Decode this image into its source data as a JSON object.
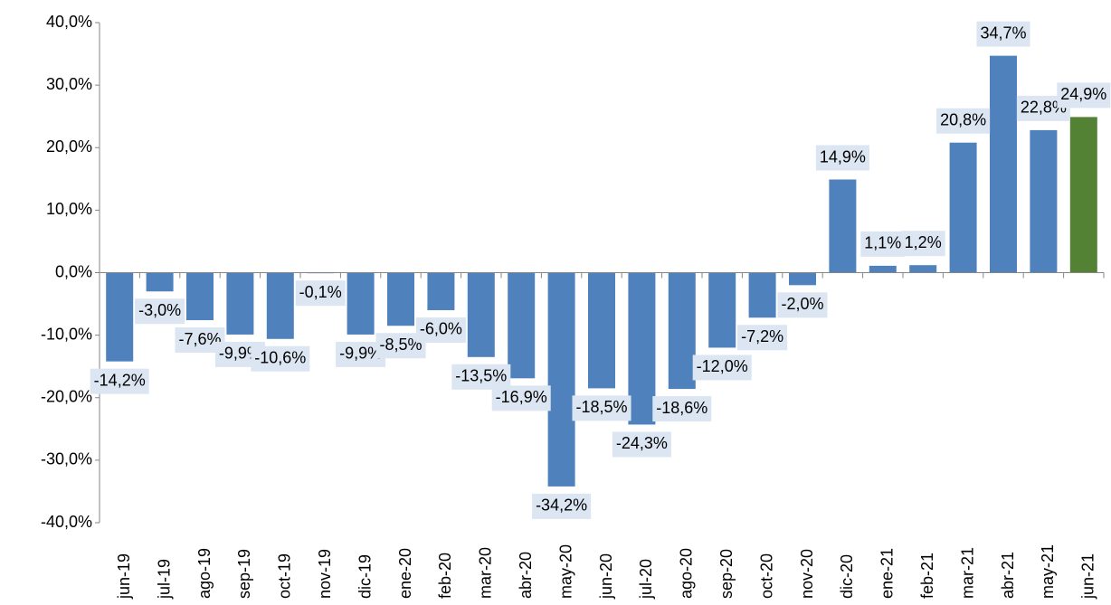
{
  "chart_data": {
    "type": "bar",
    "categories": [
      "jun-19",
      "jul-19",
      "ago-19",
      "sep-19",
      "oct-19",
      "nov-19",
      "dic-19",
      "ene-20",
      "feb-20",
      "mar-20",
      "abr-20",
      "may-20",
      "jun-20",
      "jul-20",
      "ago-20",
      "sep-20",
      "oct-20",
      "nov-20",
      "dic-20",
      "ene-21",
      "feb-21",
      "mar-21",
      "abr-21",
      "may-21",
      "jun-21"
    ],
    "values": [
      -14.2,
      -3.0,
      -7.6,
      -9.9,
      -10.6,
      -0.1,
      -9.9,
      -8.5,
      -6.0,
      -13.5,
      -16.9,
      -34.2,
      -18.5,
      -24.3,
      -18.6,
      -12.0,
      -7.2,
      -2.0,
      14.9,
      1.1,
      1.2,
      20.8,
      34.7,
      22.8,
      24.9
    ],
    "value_labels": [
      "-14,2%",
      "-3,0%",
      "-7,6%",
      "-9,9%",
      "-10,6%",
      "-0,1%",
      "-9,9%",
      "-8,5%",
      "-6,0%",
      "-13,5%",
      "-16,9%",
      "-34,2%",
      "-18,5%",
      "-24,3%",
      "-18,6%",
      "-12,0%",
      "-7,2%",
      "-2,0%",
      "14,9%",
      "1,1%",
      "1,2%",
      "20,8%",
      "34,7%",
      "22,8%",
      "24,9%"
    ],
    "colors": [
      "#4f81bd",
      "#4f81bd",
      "#4f81bd",
      "#4f81bd",
      "#4f81bd",
      "#4f81bd",
      "#4f81bd",
      "#4f81bd",
      "#4f81bd",
      "#4f81bd",
      "#4f81bd",
      "#4f81bd",
      "#4f81bd",
      "#4f81bd",
      "#4f81bd",
      "#4f81bd",
      "#4f81bd",
      "#4f81bd",
      "#4f81bd",
      "#4f81bd",
      "#4f81bd",
      "#4f81bd",
      "#4f81bd",
      "#4f81bd",
      "#548235"
    ],
    "ylim": [
      -40,
      40
    ],
    "yticks": [
      {
        "value": -40,
        "label": "-40,0%"
      },
      {
        "value": -30,
        "label": "-30,0%"
      },
      {
        "value": -20,
        "label": "-20,0%"
      },
      {
        "value": -10,
        "label": "-10,0%"
      },
      {
        "value": 0,
        "label": "0,0%"
      },
      {
        "value": 10,
        "label": "10,0%"
      },
      {
        "value": 20,
        "label": "20,0%"
      },
      {
        "value": 30,
        "label": "30,0%"
      },
      {
        "value": 40,
        "label": "40,0%"
      }
    ],
    "grid": false
  }
}
